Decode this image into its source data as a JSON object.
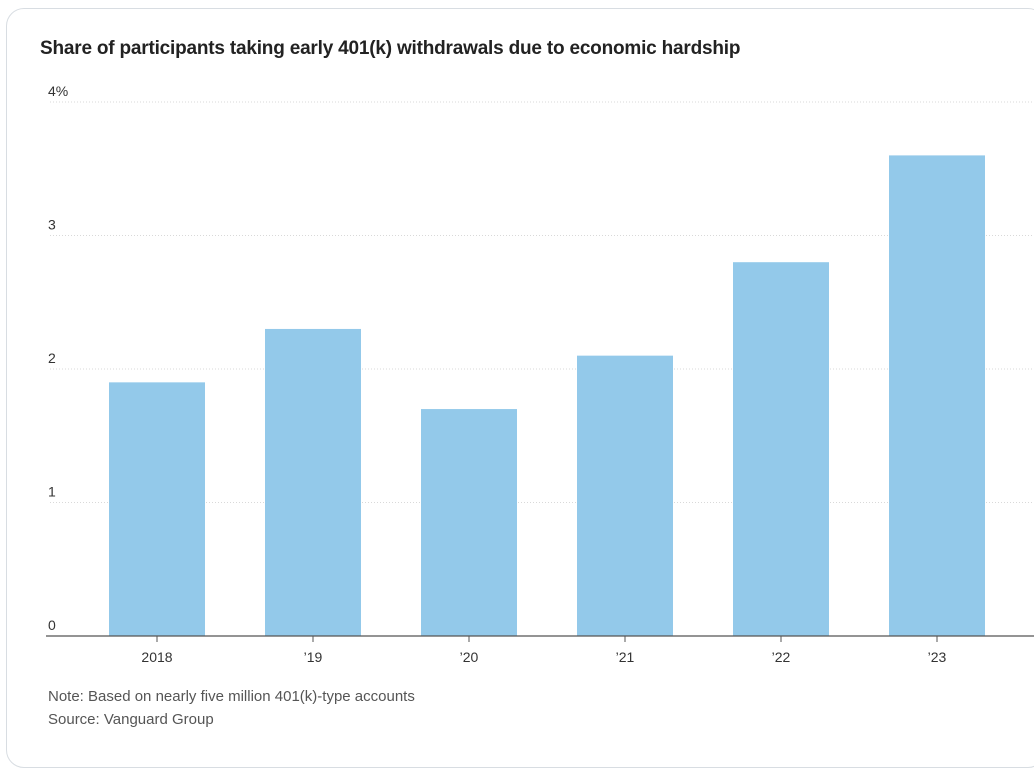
{
  "chart_data": {
    "type": "bar",
    "title": "Share of participants taking early 401(k) withdrawals due to economic hardship",
    "categories": [
      "2018",
      "’19",
      "’20",
      "’21",
      "’22",
      "’23"
    ],
    "values": [
      1.9,
      2.3,
      1.7,
      2.1,
      2.8,
      3.6
    ],
    "y_ticks": [
      {
        "value": 4,
        "label": "4%"
      },
      {
        "value": 3,
        "label": "3"
      },
      {
        "value": 2,
        "label": "2"
      },
      {
        "value": 1,
        "label": "1"
      },
      {
        "value": 0,
        "label": "0"
      }
    ],
    "ylim": [
      0,
      4
    ],
    "xlabel": "",
    "ylabel": "",
    "grid": true,
    "bar_color": "#93c9ea",
    "grid_color": "#d9d9d9",
    "baseline_color": "#555555"
  },
  "footer": {
    "note": "Note: Based on nearly five million 401(k)-type accounts",
    "source": "Source: Vanguard Group"
  }
}
